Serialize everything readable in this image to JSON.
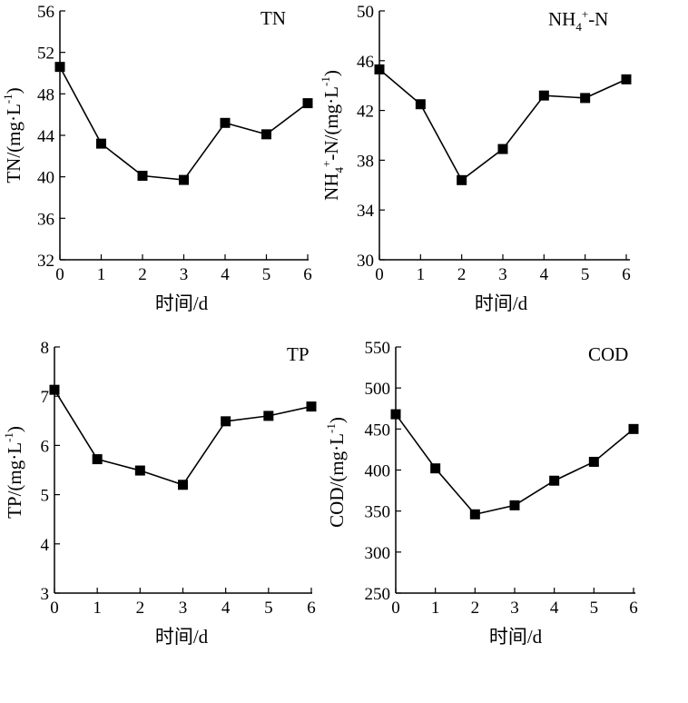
{
  "chart_data": [
    {
      "type": "line",
      "id": "tn",
      "title": "TN",
      "categories": [
        "0",
        "1",
        "2",
        "3",
        "4",
        "5",
        "6"
      ],
      "x": [
        0,
        1,
        2,
        3,
        4,
        5,
        6
      ],
      "values": [
        50.6,
        43.2,
        40.1,
        39.7,
        45.2,
        44.1,
        47.1
      ],
      "xlabel": "时间/d",
      "ylabel": {
        "base": "TN/(mg·L",
        "sup": "-1",
        "tail": ")"
      },
      "ylim": [
        32,
        56
      ],
      "yticks": [
        32,
        36,
        40,
        44,
        48,
        52,
        56
      ],
      "xticks": [
        0,
        1,
        2,
        3,
        4,
        5,
        6
      ]
    },
    {
      "type": "line",
      "id": "nh4",
      "title": {
        "a": "NH",
        "sub": "4",
        "sup": "+",
        "b": "-N"
      },
      "categories": [
        "0",
        "1",
        "2",
        "3",
        "4",
        "5",
        "6"
      ],
      "x": [
        0,
        1,
        2,
        3,
        4,
        5,
        6
      ],
      "values": [
        45.3,
        42.5,
        36.4,
        38.9,
        43.2,
        43.0,
        44.5
      ],
      "xlabel": "时间/d",
      "ylabel": {
        "a": "NH",
        "sub": "4",
        "sup1": "+",
        "b": "-N/(mg·L",
        "sup2": "-1",
        "c": ")"
      },
      "ylim": [
        30,
        50
      ],
      "yticks": [
        30,
        34,
        38,
        42,
        46,
        50
      ],
      "xticks": [
        0,
        1,
        2,
        3,
        4,
        5,
        6
      ]
    },
    {
      "type": "line",
      "id": "tp",
      "title": "TP",
      "categories": [
        "0",
        "1",
        "2",
        "3",
        "4",
        "5",
        "6"
      ],
      "x": [
        0,
        1,
        2,
        3,
        4,
        5,
        6
      ],
      "values": [
        7.13,
        5.72,
        5.49,
        5.2,
        6.49,
        6.6,
        6.79
      ],
      "xlabel": "时间/d",
      "ylabel": {
        "base": "TP/(mg·L",
        "sup": "-1",
        "tail": ")"
      },
      "ylim": [
        3,
        8
      ],
      "yticks": [
        3,
        4,
        5,
        6,
        7,
        8
      ],
      "xticks": [
        0,
        1,
        2,
        3,
        4,
        5,
        6
      ]
    },
    {
      "type": "line",
      "id": "cod",
      "title": "COD",
      "categories": [
        "0",
        "1",
        "2",
        "3",
        "4",
        "5",
        "6"
      ],
      "x": [
        0,
        1,
        2,
        3,
        4,
        5,
        6
      ],
      "values": [
        468,
        402,
        346,
        357,
        387,
        410,
        450
      ],
      "xlabel": "时间/d",
      "ylabel": {
        "base": "COD/(mg·L",
        "sup": "-1",
        "tail": ")"
      },
      "ylim": [
        250,
        550
      ],
      "yticks": [
        250,
        300,
        350,
        400,
        450,
        500,
        550
      ],
      "xticks": [
        0,
        1,
        2,
        3,
        4,
        5,
        6
      ]
    }
  ]
}
